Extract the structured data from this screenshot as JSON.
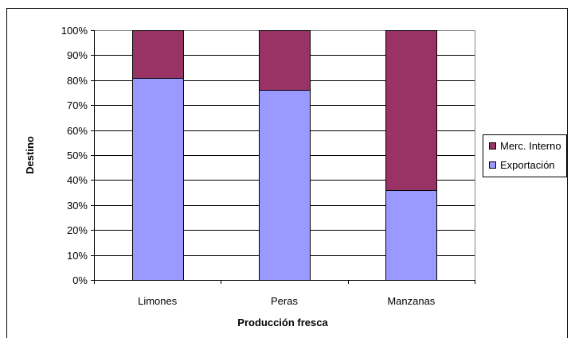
{
  "chart_data": {
    "type": "bar",
    "stacked": true,
    "percent": true,
    "categories": [
      "Limones",
      "Peras",
      "Manzanas"
    ],
    "series": [
      {
        "name": "Exportación",
        "color": "#9999ff",
        "values": [
          81,
          76,
          36
        ]
      },
      {
        "name": "Merc. Interno",
        "color": "#993366",
        "values": [
          19,
          24,
          64
        ]
      }
    ],
    "xlabel": "Producción fresca",
    "ylabel": "Destino",
    "ylim": [
      0,
      100
    ],
    "yticks": [
      "0%",
      "10%",
      "20%",
      "30%",
      "40%",
      "50%",
      "60%",
      "70%",
      "80%",
      "90%",
      "100%"
    ],
    "grid": true,
    "legend": {
      "position": "right",
      "entries": [
        "Merc. Interno",
        "Exportación"
      ]
    }
  }
}
